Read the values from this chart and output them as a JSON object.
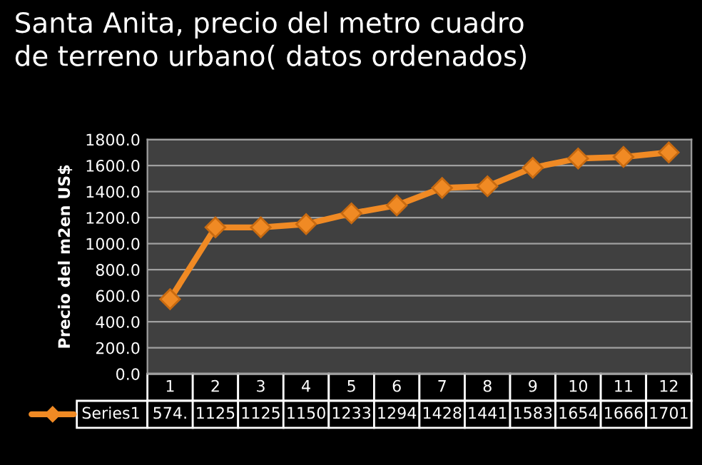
{
  "chart_data": {
    "type": "line",
    "title": "Santa Anita, precio del metro cuadro\nde terreno urbano( datos ordenados)",
    "ylabel": "Precio del m2en US$",
    "categories": [
      "1",
      "2",
      "3",
      "4",
      "5",
      "6",
      "7",
      "8",
      "9",
      "10",
      "11",
      "12"
    ],
    "series": [
      {
        "name": "Series1",
        "color": "#f08a24",
        "values": [
          574,
          1125,
          1125,
          1150,
          1233,
          1294,
          1428,
          1441,
          1583,
          1654,
          1666,
          1701
        ],
        "value_labels": [
          "574.",
          "1125",
          "1125",
          "1150",
          "1233",
          "1294",
          "1428",
          "1441",
          "1583",
          "1654",
          "1666",
          "1701"
        ]
      }
    ],
    "ylim": [
      0,
      1800
    ],
    "yticks": [
      {
        "value": 0,
        "label": "0.0"
      },
      {
        "value": 200,
        "label": "200.0"
      },
      {
        "value": 400,
        "label": "400.0"
      },
      {
        "value": 600,
        "label": "600.0"
      },
      {
        "value": 800,
        "label": "800.0"
      },
      {
        "value": 1000,
        "label": "1000.0"
      },
      {
        "value": 1200,
        "label": "1200.0"
      },
      {
        "value": 1400,
        "label": "1400.0"
      },
      {
        "value": 1600,
        "label": "1600.0"
      },
      {
        "value": 1800,
        "label": "1800.0"
      }
    ],
    "grid": "y",
    "legend": "bottom",
    "marker": "diamond",
    "line_style": "solid"
  }
}
